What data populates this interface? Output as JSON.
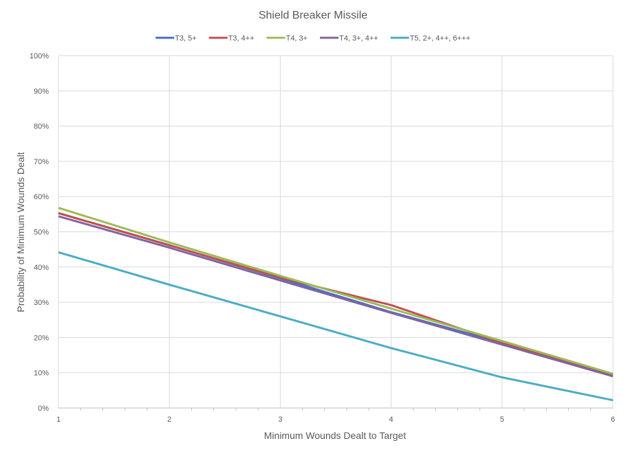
{
  "chart_data": {
    "type": "line",
    "title": "Shield Breaker Missile",
    "xlabel": "Minimum Wounds Dealt  to Target",
    "ylabel": "Probability of Minimum Wounds Dealt",
    "x": [
      1,
      2,
      3,
      4,
      5,
      6
    ],
    "x_ticks": [
      "1",
      "2",
      "3",
      "4",
      "5",
      "6"
    ],
    "xlim": [
      1,
      6
    ],
    "ylim": [
      0,
      1
    ],
    "y_ticks": [
      "0%",
      "10%",
      "20%",
      "30%",
      "40%",
      "50%",
      "60%",
      "70%",
      "80%",
      "90%",
      "100%"
    ],
    "grid": true,
    "legend_position": "top",
    "series": [
      {
        "name": "T3, 5+",
        "color": "#4472C4",
        "values": [
          0.553,
          0.462,
          0.368,
          0.272,
          0.185,
          0.095
        ]
      },
      {
        "name": "T3, 4++",
        "color": "#C0504D",
        "values": [
          0.553,
          0.462,
          0.37,
          0.292,
          0.185,
          0.095
        ]
      },
      {
        "name": "T4, 3+",
        "color": "#9BBB59",
        "values": [
          0.568,
          0.47,
          0.375,
          0.282,
          0.19,
          0.097
        ]
      },
      {
        "name": "T4, 3+, 4++",
        "color": "#8064A2",
        "values": [
          0.544,
          0.455,
          0.362,
          0.27,
          0.18,
          0.09
        ]
      },
      {
        "name": "T5, 2+, 4++, 6+++",
        "color": "#4BACC6",
        "values": [
          0.442,
          0.35,
          0.26,
          0.17,
          0.087,
          0.022
        ]
      }
    ]
  }
}
